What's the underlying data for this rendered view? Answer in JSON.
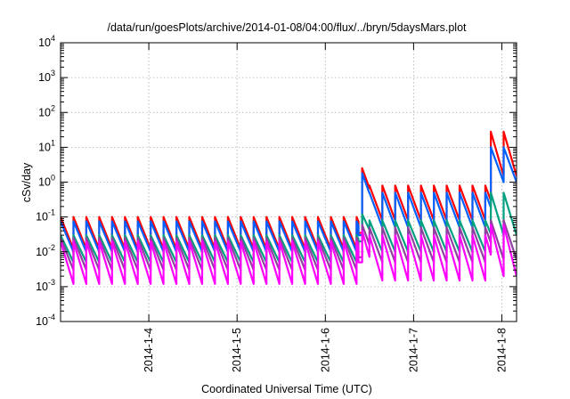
{
  "chart_data": {
    "type": "line",
    "title": "/data/run/goesPlots/archive/2014-01-08/04:00/flux/../bryn/5daysMars.plot",
    "xlabel": "Coordinated Universal Time (UTC)",
    "ylabel": "cSv/day",
    "y_scale": "log",
    "ylim": [
      0.0001,
      10000
    ],
    "y_ticks": [
      {
        "value": 0.0001,
        "base": "10",
        "exp": "-4"
      },
      {
        "value": 0.001,
        "base": "10",
        "exp": "-3"
      },
      {
        "value": 0.01,
        "base": "10",
        "exp": "-2"
      },
      {
        "value": 0.1,
        "base": "10",
        "exp": "-1"
      },
      {
        "value": 1,
        "base": "10",
        "exp": "0"
      },
      {
        "value": 10,
        "base": "10",
        "exp": "1"
      },
      {
        "value": 100,
        "base": "10",
        "exp": "2"
      },
      {
        "value": 1000,
        "base": "10",
        "exp": "3"
      },
      {
        "value": 10000,
        "base": "10",
        "exp": "4"
      }
    ],
    "xlim": [
      "2014-01-03T00:00",
      "2014-01-08T04:00"
    ],
    "x_ticks": [
      {
        "value": "2014-01-04T00:00",
        "label": "2014-1-4"
      },
      {
        "value": "2014-01-05T00:00",
        "label": "2014-1-5"
      },
      {
        "value": "2014-01-06T00:00",
        "label": "2014-1-6"
      },
      {
        "value": "2014-01-07T00:00",
        "label": "2014-1-7"
      },
      {
        "value": "2014-01-08T00:00",
        "label": "2014-1-8"
      }
    ],
    "grid": true,
    "sawtooth_period_hours": 3.5,
    "series": [
      {
        "color": "#ff0000",
        "segments": [
          {
            "start": "2014-01-03T00:00",
            "end": "2014-01-06T09:00",
            "high": 0.1,
            "low": 0.012
          },
          {
            "start": "2014-01-06T09:00",
            "end": "2014-01-06T10:00",
            "high": 0.035,
            "low": 0.035
          },
          {
            "start": "2014-01-06T10:00",
            "end": "2014-01-06T12:00",
            "high": 2.5,
            "low": 0.25
          },
          {
            "start": "2014-01-06T12:00",
            "end": "2014-01-07T21:00",
            "high": 0.8,
            "low": 0.08
          },
          {
            "start": "2014-01-07T21:00",
            "end": "2014-01-08T04:00",
            "high": 28,
            "low": 1.5
          }
        ]
      },
      {
        "color": "#0060ff",
        "segments": [
          {
            "start": "2014-01-03T00:00",
            "end": "2014-01-06T09:00",
            "high": 0.075,
            "low": 0.01
          },
          {
            "start": "2014-01-06T09:00",
            "end": "2014-01-06T10:00",
            "high": 0.03,
            "low": 0.03
          },
          {
            "start": "2014-01-06T10:00",
            "end": "2014-01-06T12:00",
            "high": 1.8,
            "low": 0.18
          },
          {
            "start": "2014-01-06T12:00",
            "end": "2014-01-07T21:00",
            "high": 0.5,
            "low": 0.05
          },
          {
            "start": "2014-01-07T21:00",
            "end": "2014-01-08T04:00",
            "high": 10,
            "low": 1.0
          }
        ]
      },
      {
        "color": "#00a080",
        "segments": [
          {
            "start": "2014-01-03T00:00",
            "end": "2014-01-06T09:00",
            "high": 0.03,
            "low": 0.005
          },
          {
            "start": "2014-01-06T09:00",
            "end": "2014-01-06T10:00",
            "high": 0.02,
            "low": 0.02
          },
          {
            "start": "2014-01-06T10:00",
            "end": "2014-01-06T12:00",
            "high": 0.12,
            "low": 0.02
          },
          {
            "start": "2014-01-06T12:00",
            "end": "2014-01-07T21:00",
            "high": 0.08,
            "low": 0.01
          },
          {
            "start": "2014-01-07T21:00",
            "end": "2014-01-08T04:00",
            "high": 0.5,
            "low": 0.03
          }
        ]
      },
      {
        "color": "#9040a0",
        "segments": [
          {
            "start": "2014-01-03T00:00",
            "end": "2014-01-06T09:00",
            "high": 0.025,
            "low": 0.003
          },
          {
            "start": "2014-01-06T09:00",
            "end": "2014-01-06T10:00",
            "high": 0.007,
            "low": 0.007
          },
          {
            "start": "2014-01-06T10:00",
            "end": "2014-01-06T12:00",
            "high": 0.06,
            "low": 0.006
          },
          {
            "start": "2014-01-06T12:00",
            "end": "2014-01-07T21:00",
            "high": 0.05,
            "low": 0.005
          },
          {
            "start": "2014-01-07T21:00",
            "end": "2014-01-08T04:00",
            "high": 0.08,
            "low": 0.006
          }
        ]
      },
      {
        "color": "#ff00ff",
        "segments": [
          {
            "start": "2014-01-03T00:00",
            "end": "2014-01-06T09:00",
            "high": 0.02,
            "low": 0.0012
          },
          {
            "start": "2014-01-06T09:00",
            "end": "2014-01-06T10:00",
            "high": 0.005,
            "low": 0.005
          },
          {
            "start": "2014-01-06T10:00",
            "end": "2014-01-06T12:00",
            "high": 0.04,
            "low": 0.002
          },
          {
            "start": "2014-01-06T12:00",
            "end": "2014-01-07T21:00",
            "high": 0.03,
            "low": 0.0015
          },
          {
            "start": "2014-01-07T21:00",
            "end": "2014-01-08T04:00",
            "high": 0.06,
            "low": 0.002
          }
        ]
      }
    ]
  }
}
